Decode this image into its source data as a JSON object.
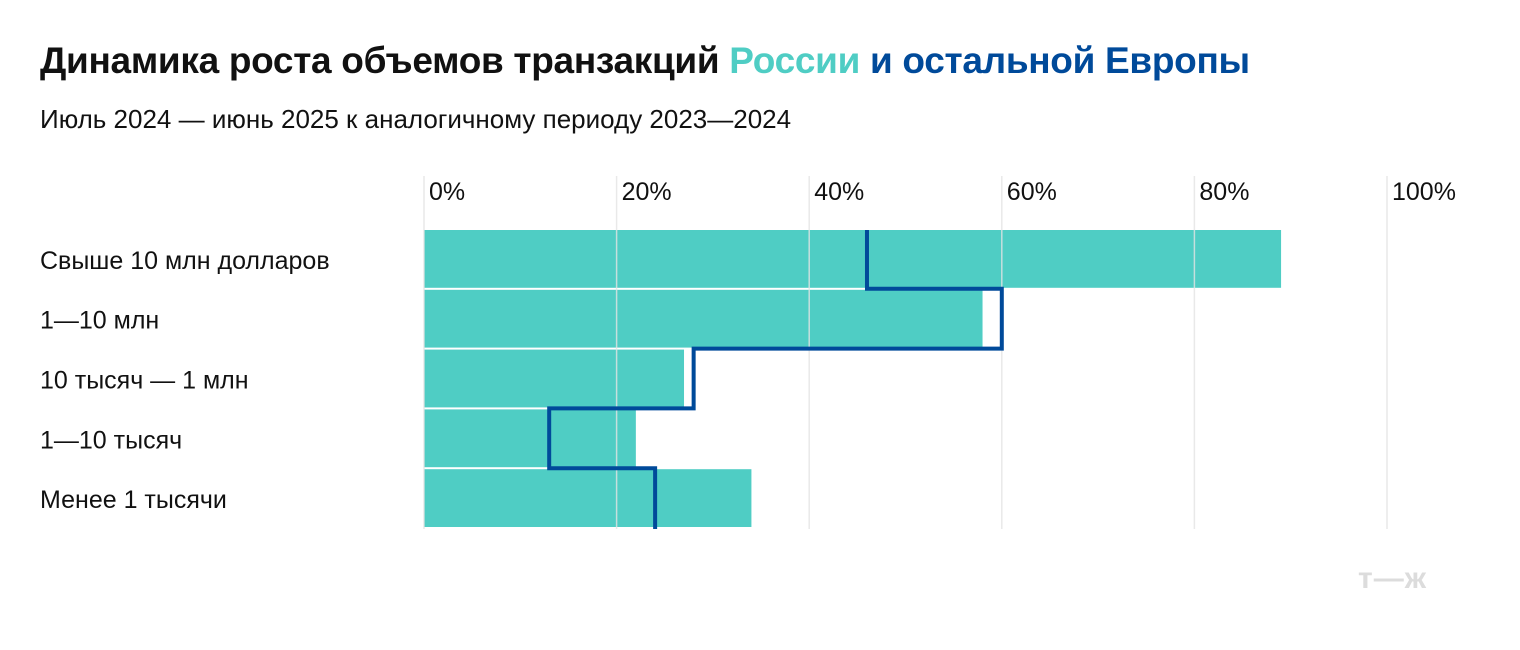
{
  "title": {
    "part1": "Динамика роста объемов транзакций ",
    "part2": "России",
    "part3": " и остальной Европы"
  },
  "subtitle": "Июль 2024 — июнь 2025 к аналогичному периоду 2023—2024",
  "logo": "т—ж",
  "colors": {
    "russia": "#4fcdc4",
    "europe": "#004a9a",
    "grid": "#e3e3e3"
  },
  "chart_data": {
    "type": "bar",
    "orientation": "horizontal",
    "categories": [
      "Свыше 10 млн долларов",
      "1—10 млн",
      "10 тысяч — 1 млн",
      "1—10 тысяч",
      "Менее 1 тысячи"
    ],
    "series": [
      {
        "name": "России",
        "style": "bar",
        "values": [
          89,
          58,
          27,
          22,
          34
        ]
      },
      {
        "name": "остальной Европы",
        "style": "step-line",
        "values": [
          46,
          60,
          28,
          13,
          24
        ]
      }
    ],
    "xlim": [
      0,
      100
    ],
    "xticks": [
      0,
      20,
      40,
      60,
      80,
      100
    ],
    "xtick_labels": [
      "0%",
      "20%",
      "40%",
      "60%",
      "80%",
      "100%"
    ],
    "xlabel": "",
    "ylabel": "",
    "grid": true,
    "axis_position": "top"
  }
}
